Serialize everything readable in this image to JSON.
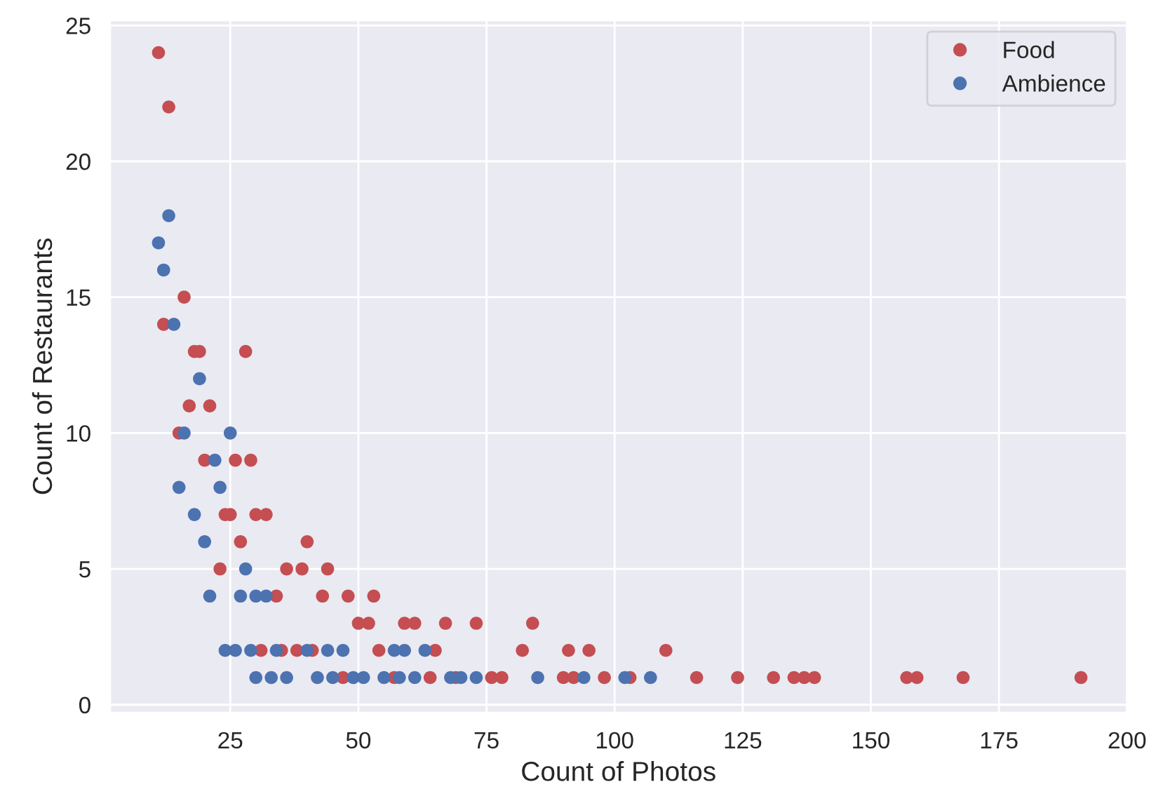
{
  "chart_data": {
    "type": "scatter",
    "xlabel": "Count of Photos",
    "ylabel": "Count of Restaurants",
    "xlim": [
      1.5,
      200
    ],
    "ylim": [
      -0.3,
      25.2
    ],
    "xticks": [
      25,
      50,
      75,
      100,
      125,
      150,
      175,
      200
    ],
    "yticks": [
      0,
      5,
      10,
      15,
      20,
      25
    ],
    "grid": true,
    "legend": "top right",
    "marker": "circle",
    "series": [
      {
        "name": "Food",
        "color": "#c44e52",
        "x": [
          11,
          13,
          12,
          16,
          18,
          19,
          28,
          17,
          21,
          15,
          20,
          26,
          29,
          24,
          25,
          30,
          32,
          27,
          40,
          23,
          36,
          39,
          44,
          34,
          43,
          48,
          53,
          50,
          52,
          59,
          61,
          67,
          73,
          84,
          31,
          35,
          38,
          41,
          54,
          65,
          82,
          91,
          95,
          110,
          47,
          57,
          64,
          69,
          76,
          78,
          90,
          92,
          98,
          103,
          116,
          124,
          131,
          135,
          137,
          139,
          157,
          159,
          168,
          191
        ],
        "values": [
          24,
          22,
          14,
          15,
          13,
          13,
          13,
          11,
          11,
          10,
          9,
          9,
          9,
          7,
          7,
          7,
          7,
          6,
          6,
          5,
          5,
          5,
          5,
          4,
          4,
          4,
          4,
          3,
          3,
          3,
          3,
          3,
          3,
          3,
          2,
          2,
          2,
          2,
          2,
          2,
          2,
          2,
          2,
          2,
          1,
          1,
          1,
          1,
          1,
          1,
          1,
          1,
          1,
          1,
          1,
          1,
          1,
          1,
          1,
          1,
          1,
          1,
          1,
          1
        ]
      },
      {
        "name": "Ambience",
        "color": "#4c72b0",
        "x": [
          11,
          12,
          13,
          14,
          19,
          16,
          25,
          22,
          15,
          23,
          18,
          20,
          28,
          21,
          27,
          30,
          32,
          24,
          26,
          29,
          34,
          40,
          44,
          47,
          57,
          59,
          63,
          30,
          33,
          36,
          42,
          45,
          49,
          51,
          55,
          58,
          61,
          68,
          70,
          73,
          85,
          94,
          102,
          107
        ],
        "values": [
          17,
          16,
          18,
          14,
          12,
          10,
          10,
          9,
          8,
          8,
          7,
          6,
          5,
          4,
          4,
          4,
          4,
          2,
          2,
          2,
          2,
          2,
          2,
          2,
          2,
          2,
          2,
          1,
          1,
          1,
          1,
          1,
          1,
          1,
          1,
          1,
          1,
          1,
          1,
          1,
          1,
          1,
          1,
          1
        ]
      }
    ]
  }
}
